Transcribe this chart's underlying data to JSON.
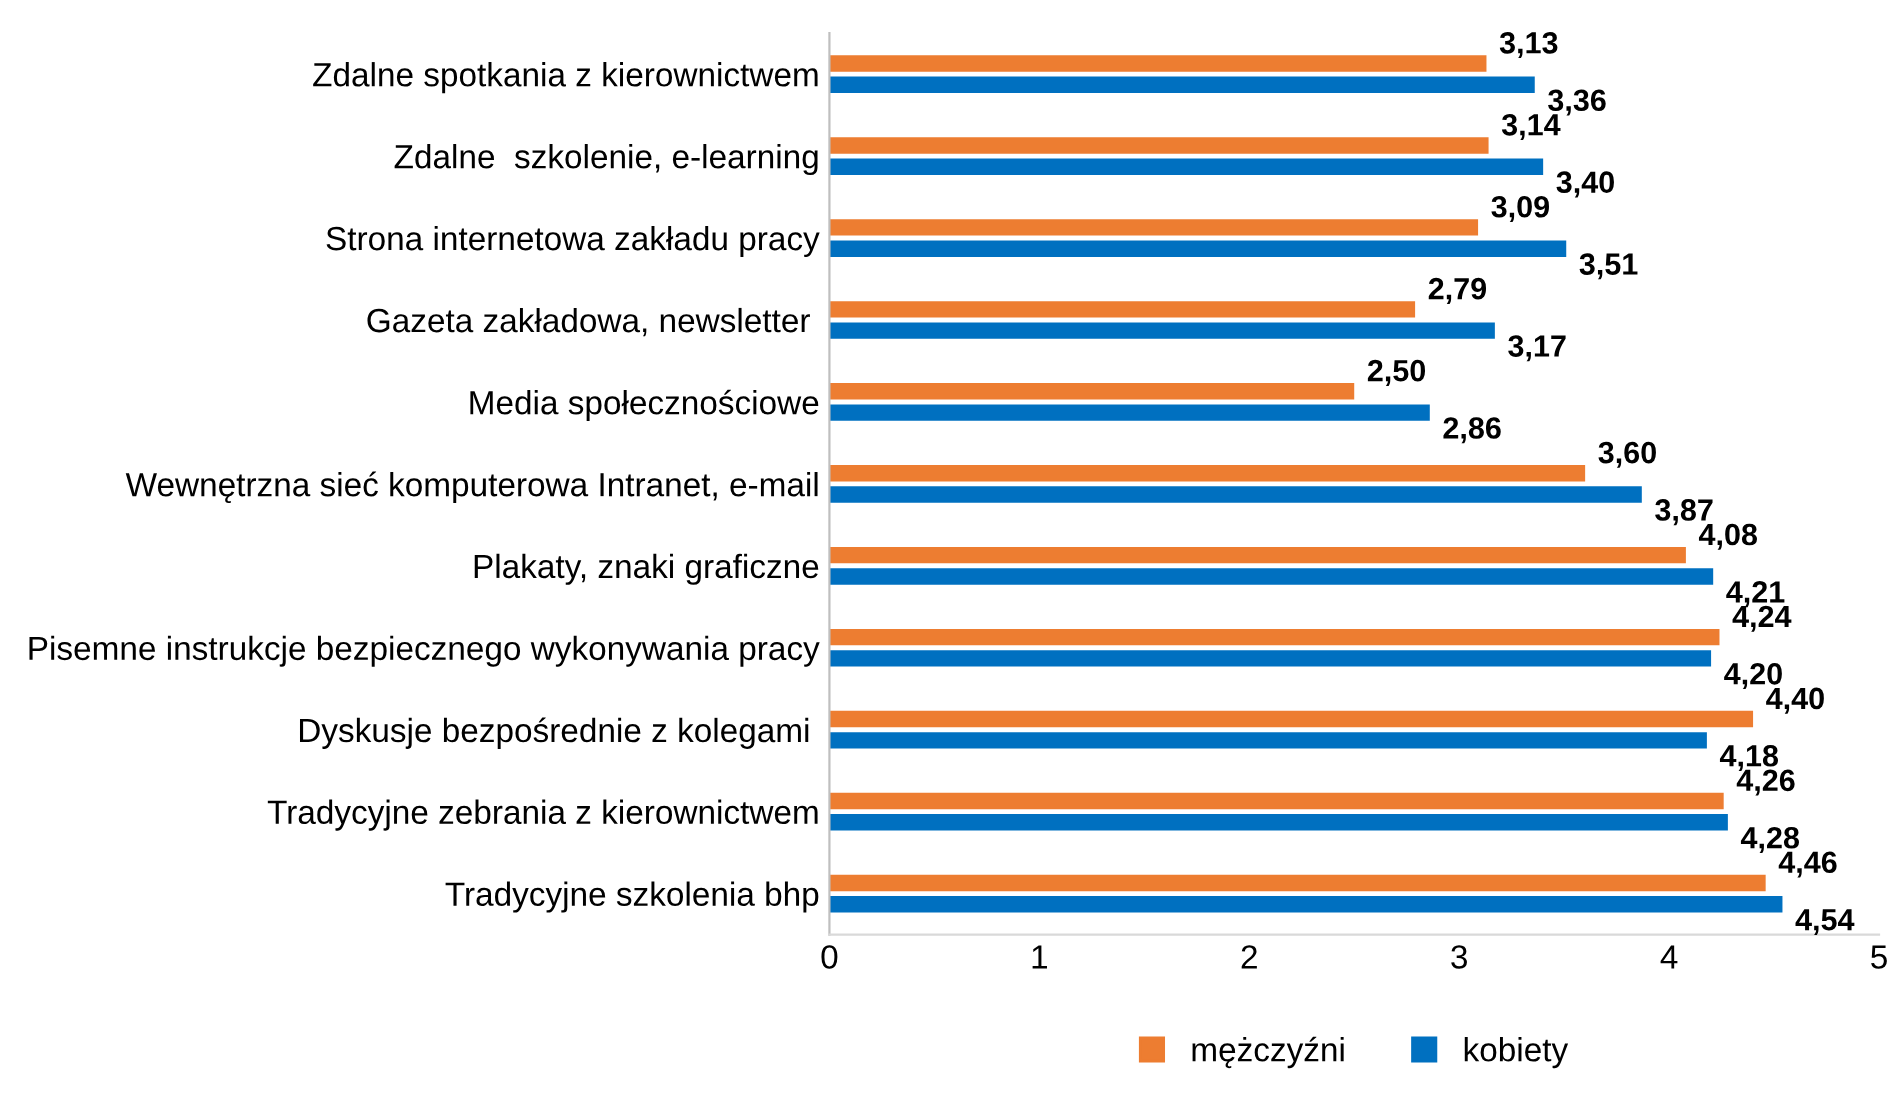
{
  "chart_data": {
    "type": "bar",
    "orientation": "horizontal",
    "categories": [
      "Zdalne spotkania z kierownictwem",
      "Zdalne  szkolenie, e-learning",
      "Strona internetowa zakładu pracy",
      "Gazeta zakładowa, newsletter ",
      "Media społecznościowe",
      "Wewnętrzna sieć komputerowa Intranet, e-mail",
      "Plakaty, znaki graficzne",
      "Pisemne instrukcje bezpiecznego wykonywania pracy",
      "Dyskusje bezpośrednie z kolegami ",
      "Tradycyjne zebrania z kierownictwem",
      "Tradycyjne szkolenia bhp"
    ],
    "series": [
      {
        "name": "mężczyźni",
        "color": "#ed7d31",
        "values": [
          3.13,
          3.14,
          3.09,
          2.79,
          2.5,
          3.6,
          4.08,
          4.24,
          4.4,
          4.26,
          4.46
        ],
        "value_labels": [
          "3,13",
          "3,14",
          "3,09",
          "2,79",
          "2,50",
          "3,60",
          "4,08",
          "4,24",
          "4,40",
          "4,26",
          "4,46"
        ]
      },
      {
        "name": "kobiety",
        "color": "#0070c0",
        "values": [
          3.36,
          3.4,
          3.51,
          3.17,
          2.86,
          3.87,
          4.21,
          4.2,
          4.18,
          4.28,
          4.54
        ],
        "value_labels": [
          "3,36",
          "3,40",
          "3,51",
          "3,17",
          "2,86",
          "3,87",
          "4,21",
          "4,20",
          "4,18",
          "4,28",
          "4,54"
        ]
      }
    ],
    "xlim": [
      0,
      5
    ],
    "xticks": [
      0,
      1,
      2,
      3,
      4,
      5
    ],
    "grid": false,
    "legend": "bottom"
  }
}
